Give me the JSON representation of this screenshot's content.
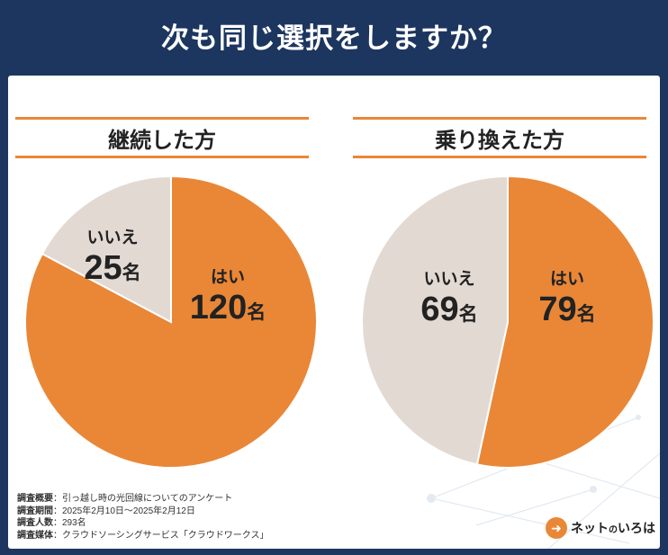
{
  "title": "次も同じ選択をしますか？",
  "colors": {
    "yes": "#e98737",
    "no": "#e2d9d3",
    "header_bg": "#1d3660",
    "accent": "#e98737"
  },
  "chart_data": [
    {
      "type": "pie",
      "title": "継続した方",
      "slices": [
        {
          "label": "はい",
          "value": 120,
          "value_label": "120名"
        },
        {
          "label": "いいえ",
          "value": 25,
          "value_label": "25名"
        }
      ]
    },
    {
      "type": "pie",
      "title": "乗り換えた方",
      "slices": [
        {
          "label": "はい",
          "value": 79,
          "value_label": "79名"
        },
        {
          "label": "いいえ",
          "value": 69,
          "value_label": "69名"
        }
      ]
    }
  ],
  "survey": [
    {
      "key": "調査概要",
      "value": "：引っ越し時の光回線についてのアンケート"
    },
    {
      "key": "調査期間",
      "value": "：2025年2月10日～2025年2月12日"
    },
    {
      "key": "調査人数",
      "value": "：293名"
    },
    {
      "key": "調査媒体",
      "value": "：クラウドソーシングサービス「クラウドワークス」"
    }
  ],
  "logo": {
    "text": "ネット",
    "small": "の",
    "text2": "いろは",
    "mark": "➜"
  }
}
